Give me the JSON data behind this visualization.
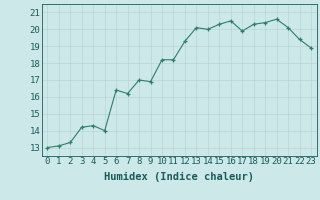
{
  "x": [
    0,
    1,
    2,
    3,
    4,
    5,
    6,
    7,
    8,
    9,
    10,
    11,
    12,
    13,
    14,
    15,
    16,
    17,
    18,
    19,
    20,
    21,
    22,
    23
  ],
  "y": [
    13.0,
    13.1,
    13.3,
    14.2,
    14.3,
    14.0,
    16.4,
    16.2,
    17.0,
    16.9,
    18.2,
    18.2,
    19.3,
    20.1,
    20.0,
    20.3,
    20.5,
    19.9,
    20.3,
    20.4,
    20.6,
    20.1,
    19.4,
    18.9
  ],
  "xlabel": "Humidex (Indice chaleur)",
  "ylim": [
    12.5,
    21.5
  ],
  "xlim": [
    -0.5,
    23.5
  ],
  "yticks": [
    13,
    14,
    15,
    16,
    17,
    18,
    19,
    20,
    21
  ],
  "xticks": [
    0,
    1,
    2,
    3,
    4,
    5,
    6,
    7,
    8,
    9,
    10,
    11,
    12,
    13,
    14,
    15,
    16,
    17,
    18,
    19,
    20,
    21,
    22,
    23
  ],
  "line_color": "#2e7d6e",
  "marker_color": "#2e7d6e",
  "bg_color": "#cce8e8",
  "grid_color": "#b8d4d4",
  "xlabel_fontsize": 7.5,
  "tick_fontsize": 6.5,
  "tick_color": "#1a5a5a"
}
